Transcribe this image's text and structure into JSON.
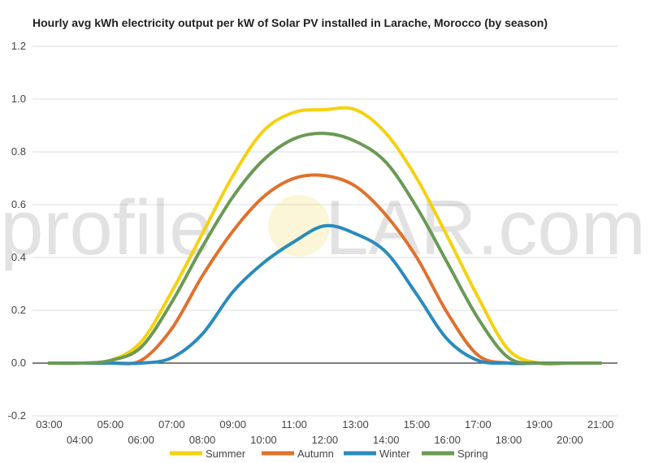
{
  "chart_data": {
    "type": "line",
    "title": "Hourly avg kWh electricity output per kW of Solar PV installed in Larache, Morocco (by season)",
    "xlabel": "",
    "ylabel": "",
    "x_tick_labels": [
      "03:00",
      "04:00",
      "05:00",
      "06:00",
      "07:00",
      "08:00",
      "09:00",
      "10:00",
      "11:00",
      "12:00",
      "13:00",
      "14:00",
      "15:00",
      "16:00",
      "17:00",
      "18:00",
      "19:00",
      "20:00",
      "21:00"
    ],
    "ylim": [
      -0.2,
      1.2
    ],
    "y_ticks": [
      -0.2,
      0.0,
      0.2,
      0.4,
      0.6,
      0.8,
      1.0,
      1.2
    ],
    "y_tick_labels": [
      "-0.2",
      "0.0",
      "0.2",
      "0.4",
      "0.6",
      "0.8",
      "1.0",
      "1.2"
    ],
    "grid": true,
    "legend_position": "bottom",
    "series": [
      {
        "name": "Summer",
        "color": "#f5d112",
        "values": [
          0,
          0,
          0.01,
          0.08,
          0.27,
          0.49,
          0.71,
          0.88,
          0.95,
          0.96,
          0.96,
          0.87,
          0.7,
          0.48,
          0.25,
          0.05,
          0,
          0,
          0
        ]
      },
      {
        "name": "Autumn",
        "color": "#e0712d",
        "values": [
          0,
          0,
          0,
          0.01,
          0.13,
          0.33,
          0.5,
          0.63,
          0.7,
          0.71,
          0.67,
          0.56,
          0.4,
          0.19,
          0.03,
          0,
          0,
          0,
          0
        ]
      },
      {
        "name": "Winter",
        "color": "#2a8bbd",
        "values": [
          0,
          0,
          0,
          0,
          0.02,
          0.11,
          0.27,
          0.38,
          0.46,
          0.52,
          0.49,
          0.42,
          0.26,
          0.09,
          0.01,
          0,
          0,
          0,
          0
        ]
      },
      {
        "name": "Spring",
        "color": "#6a9a55",
        "values": [
          0,
          0,
          0.01,
          0.06,
          0.23,
          0.44,
          0.63,
          0.77,
          0.85,
          0.87,
          0.84,
          0.76,
          0.59,
          0.38,
          0.17,
          0.02,
          0,
          0,
          0
        ]
      }
    ]
  },
  "watermark": {
    "left": "profile",
    "right": "LAR.com"
  }
}
